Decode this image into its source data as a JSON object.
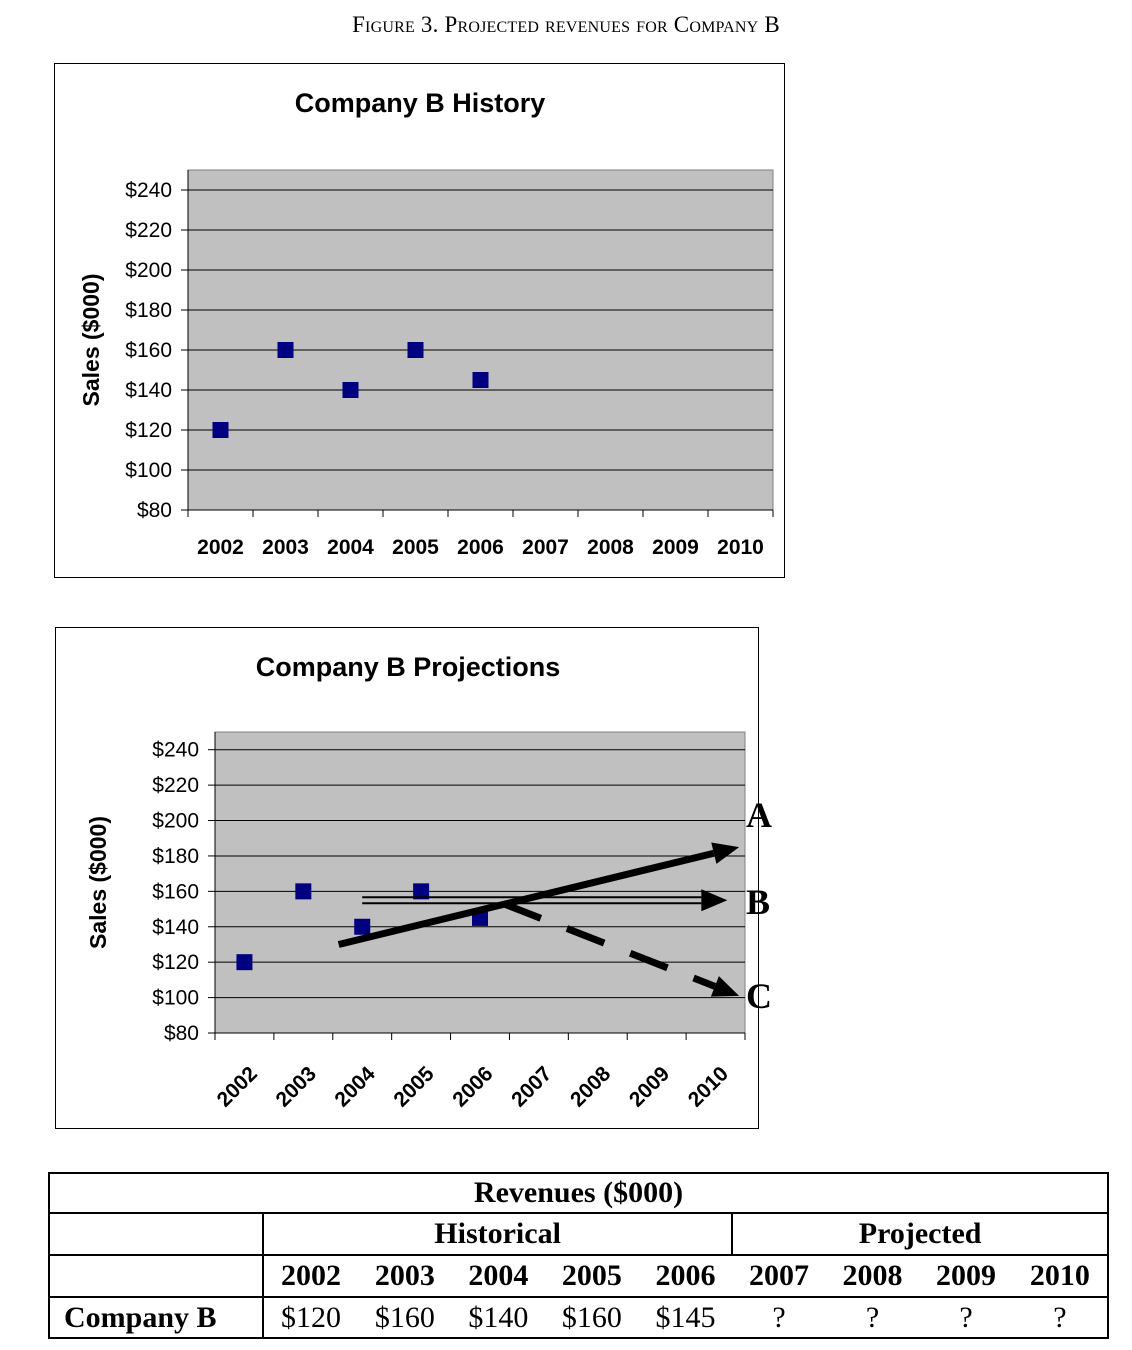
{
  "figure_title": "Figure 3. Projected revenues for Company B",
  "chart_data": [
    {
      "type": "scatter",
      "title": "Company B History",
      "xlabel": "",
      "ylabel": "Sales ($000)",
      "categories": [
        "2002",
        "2003",
        "2004",
        "2005",
        "2006",
        "2007",
        "2008",
        "2009",
        "2010"
      ],
      "y_tick_labels": [
        "$80",
        "$100",
        "$120",
        "$140",
        "$160",
        "$180",
        "$200",
        "$220",
        "$240"
      ],
      "ylim": [
        80,
        250
      ],
      "grid": true,
      "marker": "square",
      "color": "#000080",
      "plot_bg": "#c0c0c0",
      "points": [
        {
          "x": "2002",
          "y": 120
        },
        {
          "x": "2003",
          "y": 160
        },
        {
          "x": "2004",
          "y": 140
        },
        {
          "x": "2005",
          "y": 160
        },
        {
          "x": "2006",
          "y": 145
        }
      ]
    },
    {
      "type": "scatter",
      "title": "Company B Projections",
      "xlabel": "",
      "ylabel": "Sales ($000)",
      "categories": [
        "2002",
        "2003",
        "2004",
        "2005",
        "2006",
        "2007",
        "2008",
        "2009",
        "2010"
      ],
      "y_tick_labels": [
        "$80",
        "$100",
        "$120",
        "$140",
        "$160",
        "$180",
        "$200",
        "$220",
        "$240"
      ],
      "ylim": [
        80,
        250
      ],
      "grid": true,
      "marker": "square",
      "color": "#000080",
      "plot_bg": "#c0c0c0",
      "points": [
        {
          "x": "2002",
          "y": 120
        },
        {
          "x": "2003",
          "y": 160
        },
        {
          "x": "2004",
          "y": 140
        },
        {
          "x": "2005",
          "y": 160
        },
        {
          "x": "2006",
          "y": 145
        }
      ],
      "annotations": [
        {
          "label": "A",
          "style": "solid",
          "from": {
            "x": 2003.6,
            "y": 130
          },
          "to": {
            "x": 2010.4,
            "y": 185
          }
        },
        {
          "label": "B",
          "style": "double",
          "from": {
            "x": 2004.0,
            "y": 155
          },
          "to": {
            "x": 2010.2,
            "y": 155
          }
        },
        {
          "label": "C",
          "style": "dashed",
          "from": {
            "x": 2006.4,
            "y": 153
          },
          "to": {
            "x": 2010.4,
            "y": 101
          }
        }
      ]
    }
  ],
  "table": {
    "title": "Revenues ($000)",
    "group_historical": "Historical",
    "group_projected": "Projected",
    "years": [
      "2002",
      "2003",
      "2004",
      "2005",
      "2006",
      "2007",
      "2008",
      "2009",
      "2010"
    ],
    "row_label": "Company B",
    "values": [
      "$120",
      "$160",
      "$140",
      "$160",
      "$145",
      "?",
      "?",
      "?",
      "?"
    ]
  }
}
